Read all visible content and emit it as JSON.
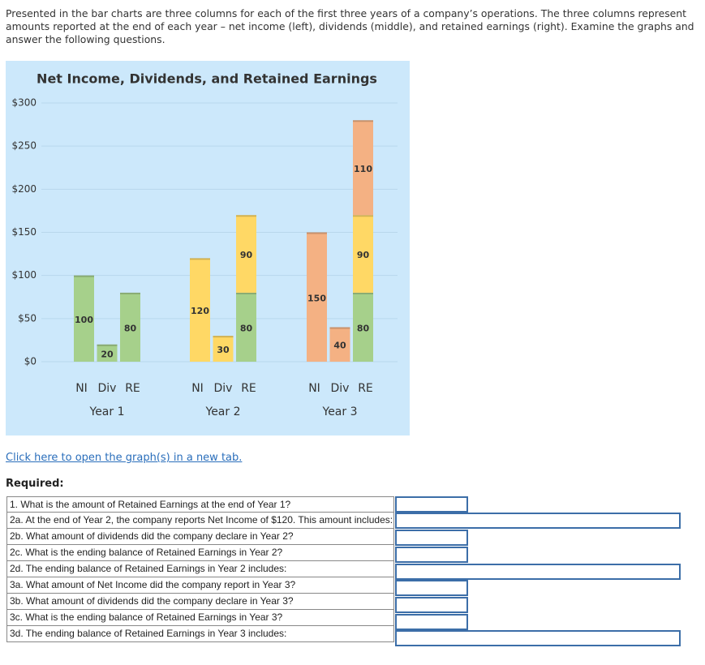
{
  "intro": "Presented in the bar charts are three columns for each of the first three years of a company’s operations. The three columns represent amounts reported at the end of each year – net income (left), dividends (middle), and retained earnings (right). Examine the graphs and answer the following questions.",
  "chart_data": {
    "type": "stacked_bar",
    "title": "Net Income, Dividends, and Retained Earnings",
    "ylim": [
      0,
      300
    ],
    "yticks": [
      {
        "value": 0,
        "label": "$0"
      },
      {
        "value": 50,
        "label": "$50"
      },
      {
        "value": 100,
        "label": "$100"
      },
      {
        "value": 150,
        "label": "$150"
      },
      {
        "value": 200,
        "label": "$200"
      },
      {
        "value": 250,
        "label": "$250"
      },
      {
        "value": 300,
        "label": "$300"
      }
    ],
    "grid": true,
    "groups": [
      {
        "name": "Year 1",
        "columns": [
          {
            "label": "NI",
            "segments": [
              {
                "value": 100,
                "color": "#a6d08b"
              }
            ]
          },
          {
            "label": "Div",
            "segments": [
              {
                "value": 20,
                "color": "#a6d08b"
              }
            ]
          },
          {
            "label": "RE",
            "segments": [
              {
                "value": 80,
                "color": "#a6d08b"
              }
            ]
          }
        ]
      },
      {
        "name": "Year 2",
        "columns": [
          {
            "label": "NI",
            "segments": [
              {
                "value": 120,
                "color": "#ffd865"
              }
            ]
          },
          {
            "label": "Div",
            "segments": [
              {
                "value": 30,
                "color": "#ffd865"
              }
            ]
          },
          {
            "label": "RE",
            "segments": [
              {
                "value": 80,
                "color": "#a6d08b"
              },
              {
                "value": 90,
                "color": "#ffd865"
              }
            ]
          }
        ]
      },
      {
        "name": "Year 3",
        "columns": [
          {
            "label": "NI",
            "segments": [
              {
                "value": 150,
                "color": "#f4b183"
              }
            ]
          },
          {
            "label": "Div",
            "segments": [
              {
                "value": 40,
                "color": "#f4b183"
              }
            ]
          },
          {
            "label": "RE",
            "segments": [
              {
                "value": 80,
                "color": "#a6d08b"
              },
              {
                "value": 90,
                "color": "#ffd865"
              },
              {
                "value": 110,
                "color": "#f4b183"
              }
            ]
          }
        ]
      }
    ]
  },
  "link": "Click here to open the graph(s) in a new tab.",
  "required": {
    "label": "Required:",
    "questions": [
      "1. What is the amount of Retained Earnings at the end of Year 1?",
      "2a. At the end of Year 2, the company reports Net Income of $120. This amount includes:",
      "2b. What amount of dividends did the company declare in Year 2?",
      "2c. What is the ending balance of Retained Earnings in Year 2?",
      "2d. The ending balance of Retained Earnings in Year 2 includes:",
      "3a. What amount of Net Income did the company report in Year 3?",
      "3b. What amount of dividends did the company declare in Year 3?",
      "3c. What is the ending balance of Retained Earnings in Year 3?",
      "3d. The ending balance of Retained Earnings in Year 3 includes:"
    ]
  }
}
